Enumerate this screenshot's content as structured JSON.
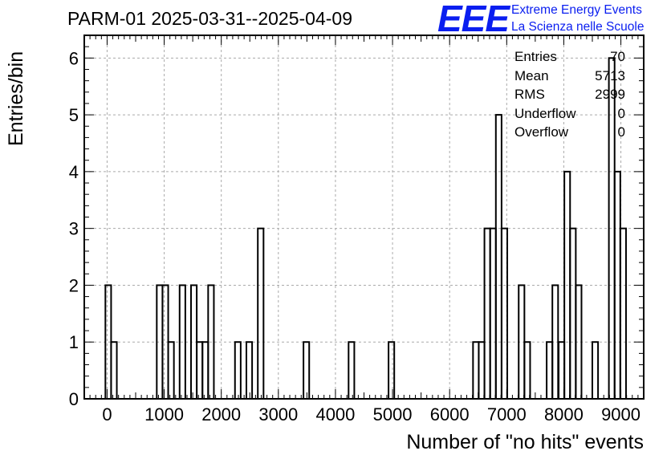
{
  "header": {
    "title": "PARM-01 2025-03-31--2025-04-09",
    "logo_text": "EEE",
    "brand_line1": "Extreme Energy Events",
    "brand_line2": "La Scienza nelle Scuole",
    "brand_color": "#0a1ef0"
  },
  "stats": [
    {
      "label": "Entries",
      "value": "70"
    },
    {
      "label": "Mean",
      "value": "5713"
    },
    {
      "label": "RMS",
      "value": "2999"
    },
    {
      "label": "Underflow",
      "value": "0"
    },
    {
      "label": "Overflow",
      "value": "0"
    }
  ],
  "chart_data": {
    "type": "histogram",
    "title": "PARM-01 2025-03-31--2025-04-09",
    "xlabel": "Number of \"no hits\" events",
    "ylabel": "Entries/bin",
    "xlim": [
      -400,
      9400
    ],
    "ylim": [
      0,
      6.4
    ],
    "bin_width": 100,
    "xticks": [
      0,
      1000,
      2000,
      3000,
      4000,
      5000,
      6000,
      7000,
      8000,
      9000
    ],
    "yticks": [
      0,
      1,
      2,
      3,
      4,
      5,
      6
    ],
    "grid": true,
    "bins": [
      {
        "x": -30,
        "count": 2
      },
      {
        "x": 70,
        "count": 1
      },
      {
        "x": 870,
        "count": 2
      },
      {
        "x": 970,
        "count": 2
      },
      {
        "x": 1070,
        "count": 1
      },
      {
        "x": 1270,
        "count": 2
      },
      {
        "x": 1470,
        "count": 2
      },
      {
        "x": 1570,
        "count": 1
      },
      {
        "x": 1670,
        "count": 1
      },
      {
        "x": 1770,
        "count": 2
      },
      {
        "x": 2240,
        "count": 1
      },
      {
        "x": 2440,
        "count": 1
      },
      {
        "x": 2640,
        "count": 3
      },
      {
        "x": 3440,
        "count": 1
      },
      {
        "x": 4230,
        "count": 1
      },
      {
        "x": 4930,
        "count": 1
      },
      {
        "x": 6410,
        "count": 1
      },
      {
        "x": 6510,
        "count": 1
      },
      {
        "x": 6610,
        "count": 3
      },
      {
        "x": 6710,
        "count": 3
      },
      {
        "x": 6810,
        "count": 5
      },
      {
        "x": 6910,
        "count": 3
      },
      {
        "x": 7210,
        "count": 2
      },
      {
        "x": 7310,
        "count": 1
      },
      {
        "x": 7700,
        "count": 1
      },
      {
        "x": 7800,
        "count": 2
      },
      {
        "x": 7910,
        "count": 1
      },
      {
        "x": 8010,
        "count": 4
      },
      {
        "x": 8110,
        "count": 3
      },
      {
        "x": 8210,
        "count": 2
      },
      {
        "x": 8500,
        "count": 1
      },
      {
        "x": 8790,
        "count": 6
      },
      {
        "x": 8890,
        "count": 4
      },
      {
        "x": 8990,
        "count": 3
      }
    ]
  }
}
